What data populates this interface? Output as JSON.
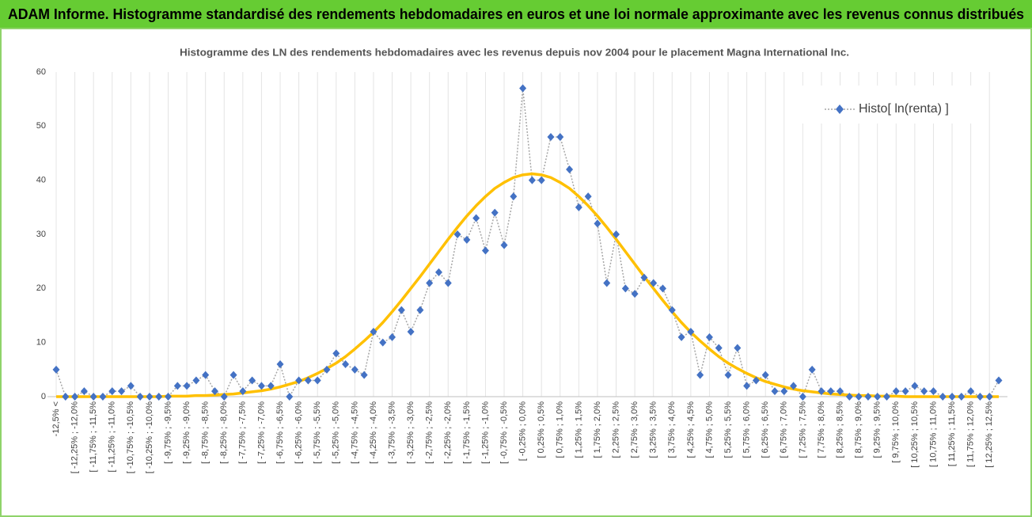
{
  "chart_data": {
    "type": "line",
    "header": "ADAM Informe. Histogramme standardisé des rendements hebdomadaires en euros et une loi normale approximante avec les revenus connus distribués",
    "title": "Histogramme des LN des rendements hebdomadaires avec les revenus depuis nov 2004 pour le placement Magna International Inc.",
    "categories": [
      "-12,5% <",
      null,
      "[ -12,25% ; -12,0%",
      null,
      "[ -11,75% ; -11,5%",
      null,
      "[ -11,25% ; -11,0%",
      null,
      "[ -10,75% ; -10,5%",
      null,
      "[ -10,25% ; -10,0%",
      null,
      "[ -9,75% ; -9,5%",
      null,
      "[ -9,25% ; -9,0%",
      null,
      "[ -8,75% ; -8,5%",
      null,
      "[ -8,25% ; -8,0%",
      null,
      "[ -7,75% ; -7,5%",
      null,
      "[ -7,25% ; -7,0%",
      null,
      "[ -6,75% ; -6,5%",
      null,
      "[ -6,25% ; -6,0%",
      null,
      "[ -5,75% ; -5,5%",
      null,
      "[ -5,25% ; -5,0%",
      null,
      "[ -4,75% ; -4,5%",
      null,
      "[ -4,25% ; -4,0%",
      null,
      "[ -3,75% ; -3,5%",
      null,
      "[ -3,25% ; -3,0%",
      null,
      "[ -2,75% ; -2,5%",
      null,
      "[ -2,25% ; -2,0%",
      null,
      "[ -1,75% ; -1,5%",
      null,
      "[ -1,25% ; -1,0%",
      null,
      "[ -0,75% ; -0,5%",
      null,
      "[ -0,25% ; 0,0%",
      null,
      "[ 0,25% ; 0,5%",
      null,
      "[ 0,75% ; 1,0%",
      null,
      "[ 1,25% ; 1,5%",
      null,
      "[ 1,75% ; 2,0%",
      null,
      "[ 2,25% ; 2,5%",
      null,
      "[ 2,75% ; 3,0%",
      null,
      "[ 3,25% ; 3,5%",
      null,
      "[ 3,75% ; 4,0%",
      null,
      "[ 4,25% ; 4,5%",
      null,
      "[ 4,75% ; 5,0%",
      null,
      "[ 5,25% ; 5,5%",
      null,
      "[ 5,75% ; 6,0%",
      null,
      "[ 6,25% ; 6,5%",
      null,
      "[ 6,75% ; 7,0%",
      null,
      "[ 7,25% ; 7,5%",
      null,
      "[ 7,75% ; 8,0%",
      null,
      "[ 8,25% ; 8,5%",
      null,
      "[ 8,75% ; 9,0%",
      null,
      "[ 9,25% ; 9,5%",
      null,
      "[ 9,75% ; 10,0%",
      null,
      "[ 10,25% ; 10,5%",
      null,
      "[ 10,75% ; 11,0%",
      null,
      "[ 11,25% ; 11,5%",
      null,
      "[ 11,75% ; 12,0%",
      null,
      "[ 12,25% ; 12,5%",
      null
    ],
    "series": [
      {
        "name": "Histo[ ln(renta) ]",
        "color": "#4472c4",
        "values": [
          5,
          0,
          0,
          1,
          0,
          0,
          1,
          1,
          2,
          0,
          0,
          0,
          0,
          2,
          2,
          3,
          4,
          1,
          0,
          4,
          1,
          3,
          2,
          2,
          6,
          0,
          3,
          3,
          3,
          5,
          8,
          6,
          5,
          4,
          12,
          10,
          11,
          16,
          12,
          16,
          21,
          23,
          21,
          30,
          29,
          33,
          27,
          34,
          28,
          37,
          57,
          40,
          40,
          48,
          48,
          42,
          35,
          37,
          32,
          21,
          30,
          20,
          19,
          22,
          21,
          20,
          16,
          11,
          12,
          4,
          11,
          9,
          4,
          9,
          2,
          3,
          4,
          1,
          1,
          2,
          0,
          5,
          1,
          1,
          1,
          0,
          0,
          0,
          0,
          0,
          1,
          1,
          2,
          1,
          1,
          0,
          0,
          0,
          1,
          0,
          0,
          3
        ]
      },
      {
        "color": "#ffc000",
        "values": [
          0,
          0,
          0,
          0,
          0,
          0,
          0,
          0,
          0,
          0,
          0,
          0,
          0.1,
          0.1,
          0.1,
          0.2,
          0.2,
          0.3,
          0.4,
          0.5,
          0.7,
          0.9,
          1.1,
          1.4,
          1.8,
          2.3,
          2.8,
          3.5,
          4.3,
          5.2,
          6.2,
          7.4,
          8.8,
          10.3,
          11.9,
          13.7,
          15.7,
          17.8,
          20.0,
          22.2,
          24.5,
          26.8,
          29.1,
          31.3,
          33.4,
          35.3,
          37.0,
          38.5,
          39.6,
          40.5,
          41.0,
          41.2,
          41.0,
          40.5,
          39.6,
          38.5,
          37.0,
          35.3,
          33.4,
          31.3,
          29.1,
          26.8,
          24.5,
          22.2,
          20.0,
          17.8,
          15.7,
          13.7,
          11.9,
          10.3,
          8.8,
          7.4,
          6.2,
          5.2,
          4.3,
          3.5,
          2.8,
          2.3,
          1.8,
          1.4,
          1.1,
          0.9,
          0.7,
          0.5,
          0.4,
          0.3,
          0.2,
          0.2,
          0.1,
          0.1,
          0.1,
          0,
          0,
          0,
          0,
          0,
          0,
          0,
          0,
          0,
          0,
          0
        ]
      }
    ],
    "ylim": [
      0,
      60
    ],
    "yticks": [
      0,
      10,
      20,
      30,
      40,
      50,
      60
    ],
    "grid": true,
    "legend": "top-right"
  }
}
